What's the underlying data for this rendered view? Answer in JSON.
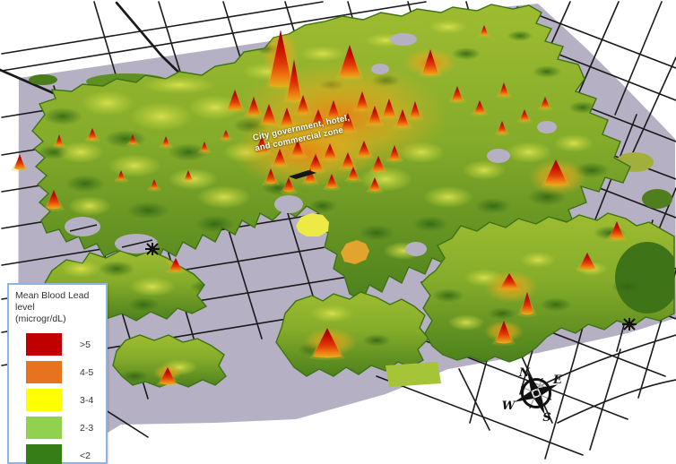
{
  "figure": {
    "annotation": {
      "line1": "City government, hotel,",
      "line2": "and commercial zone"
    },
    "legend": {
      "title_line1": "Mean Blood Lead level",
      "title_line2": "(microgr/dL)",
      "items": [
        {
          "label": ">5",
          "color": "#c00000"
        },
        {
          "label": "4-5",
          "color": "#e8731e"
        },
        {
          "label": "3-4",
          "color": "#ffff00"
        },
        {
          "label": "2-3",
          "color": "#92d050"
        },
        {
          "label": "<2",
          "color": "#377d17"
        }
      ]
    },
    "compass": {
      "north": "N",
      "east": "E",
      "south": "S",
      "west": "W"
    }
  },
  "chart_data": {
    "type": "heatmap",
    "title": "Mean Blood Lead level (microgr/dL)",
    "legend_categories": [
      ">5",
      "4-5",
      "3-4",
      "2-3",
      "<2"
    ],
    "legend_colors": [
      "#c00000",
      "#e8731e",
      "#ffff00",
      "#92d050",
      "#377d17"
    ],
    "legend_position": "bottom-left",
    "annotations": [
      "City government, hotel, and commercial zone"
    ],
    "notes": "3D interpolated surface of mean blood lead levels drawn over a city street map; the tallest red (>5) peaks cluster over the city government, hotel and commercial zone in the map center, with green (<2) areas toward the periphery."
  }
}
